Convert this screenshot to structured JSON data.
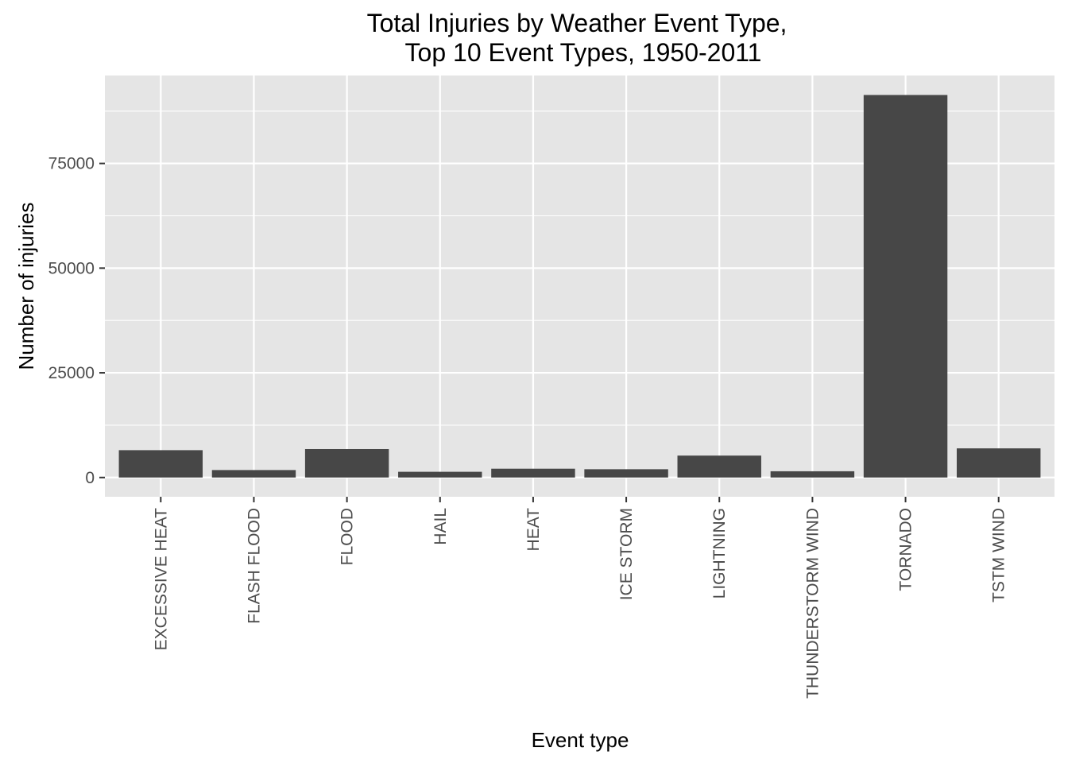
{
  "chart_data": {
    "type": "bar",
    "title_lines": [
      "Total Injuries by Weather Event Type,",
      "Top 10 Event Types, 1950-2011"
    ],
    "xlabel": "Event type",
    "ylabel": "Number of injuries",
    "categories": [
      "EXCESSIVE HEAT",
      "FLASH FLOOD",
      "FLOOD",
      "HAIL",
      "HEAT",
      "ICE STORM",
      "LIGHTNING",
      "THUNDERSTORM WIND",
      "TORNADO",
      "TSTM WIND"
    ],
    "values": [
      6525,
      1777,
      6789,
      1361,
      2100,
      1975,
      5230,
      1488,
      91346,
      6957
    ],
    "ylim": [
      -4600,
      96000
    ],
    "yticks": [
      0,
      25000,
      50000,
      75000
    ],
    "ytick_labels": [
      "0",
      "25000",
      "50000",
      "75000"
    ],
    "grid": true,
    "legend": "none",
    "colors": {
      "panel_bg": "#e5e5e5",
      "grid": "#ffffff",
      "bar": "#474747",
      "text": "#000000",
      "tick_text": "#4d4d4d",
      "tick_mark": "#333333"
    }
  }
}
